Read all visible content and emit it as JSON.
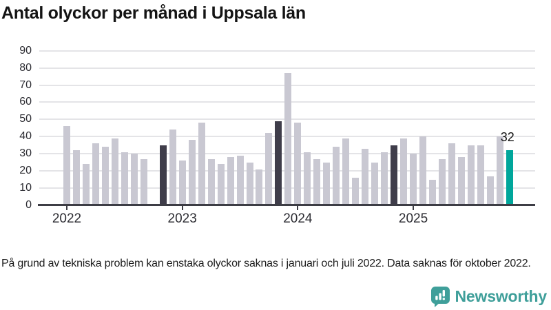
{
  "title": "Antal olyckor per månad i Uppsala län",
  "footnote": "På grund av tekniska problem kan enstaka olyckor saknas i januari och juli 2022. Data saknas för oktober 2022.",
  "branding": {
    "name": "Newsworthy",
    "icon": "newsworthy-speech-bubble-chart-icon",
    "color": "#3f9f9a"
  },
  "colors": {
    "bar_default": "#c9c8d2",
    "bar_highlight_dark": "#3f3d4a",
    "bar_latest": "#00a69b",
    "gridline": "#e4e4e7",
    "axis": "#3d3d45",
    "text": "#141414"
  },
  "chart_data": {
    "type": "bar",
    "title": "Antal olyckor per månad i Uppsala län",
    "xlabel": "",
    "ylabel": "",
    "ylim": [
      0,
      90
    ],
    "grid": "horizontal",
    "legend": "none",
    "y_ticks": [
      0,
      10,
      20,
      30,
      40,
      50,
      60,
      70,
      80,
      90
    ],
    "x_axis": {
      "labels": [
        "2022",
        "2023",
        "2024",
        "2025"
      ],
      "tick_months": [
        "2022-01",
        "2023-01",
        "2024-01",
        "2025-01"
      ]
    },
    "series": [
      {
        "name": "Antal olyckor",
        "points": [
          {
            "month": "2022-01",
            "value": 46,
            "style": "default"
          },
          {
            "month": "2022-02",
            "value": 32,
            "style": "default"
          },
          {
            "month": "2022-03",
            "value": 24,
            "style": "default"
          },
          {
            "month": "2022-04",
            "value": 36,
            "style": "default"
          },
          {
            "month": "2022-05",
            "value": 34,
            "style": "default"
          },
          {
            "month": "2022-06",
            "value": 39,
            "style": "default"
          },
          {
            "month": "2022-07",
            "value": 31,
            "style": "default"
          },
          {
            "month": "2022-08",
            "value": 30,
            "style": "default"
          },
          {
            "month": "2022-09",
            "value": 27,
            "style": "default"
          },
          {
            "month": "2022-10",
            "value": null,
            "style": "missing"
          },
          {
            "month": "2022-11",
            "value": 35,
            "style": "highlight-dark"
          },
          {
            "month": "2022-12",
            "value": 44,
            "style": "default"
          },
          {
            "month": "2023-01",
            "value": 26,
            "style": "default"
          },
          {
            "month": "2023-02",
            "value": 38,
            "style": "default"
          },
          {
            "month": "2023-03",
            "value": 48,
            "style": "default"
          },
          {
            "month": "2023-04",
            "value": 27,
            "style": "default"
          },
          {
            "month": "2023-05",
            "value": 24,
            "style": "default"
          },
          {
            "month": "2023-06",
            "value": 28,
            "style": "default"
          },
          {
            "month": "2023-07",
            "value": 29,
            "style": "default"
          },
          {
            "month": "2023-08",
            "value": 25,
            "style": "default"
          },
          {
            "month": "2023-09",
            "value": 21,
            "style": "default"
          },
          {
            "month": "2023-10",
            "value": 42,
            "style": "default"
          },
          {
            "month": "2023-11",
            "value": 49,
            "style": "highlight-dark"
          },
          {
            "month": "2023-12",
            "value": 77,
            "style": "default"
          },
          {
            "month": "2024-01",
            "value": 48,
            "style": "default"
          },
          {
            "month": "2024-02",
            "value": 31,
            "style": "default"
          },
          {
            "month": "2024-03",
            "value": 27,
            "style": "default"
          },
          {
            "month": "2024-04",
            "value": 25,
            "style": "default"
          },
          {
            "month": "2024-05",
            "value": 34,
            "style": "default"
          },
          {
            "month": "2024-06",
            "value": 39,
            "style": "default"
          },
          {
            "month": "2024-07",
            "value": 16,
            "style": "default"
          },
          {
            "month": "2024-08",
            "value": 33,
            "style": "default"
          },
          {
            "month": "2024-09",
            "value": 25,
            "style": "default"
          },
          {
            "month": "2024-10",
            "value": 31,
            "style": "default"
          },
          {
            "month": "2024-11",
            "value": 35,
            "style": "highlight-dark"
          },
          {
            "month": "2024-12",
            "value": 39,
            "style": "default"
          },
          {
            "month": "2025-01",
            "value": 30,
            "style": "default"
          },
          {
            "month": "2025-02",
            "value": 40,
            "style": "default"
          },
          {
            "month": "2025-03",
            "value": 15,
            "style": "default"
          },
          {
            "month": "2025-04",
            "value": 27,
            "style": "default"
          },
          {
            "month": "2025-05",
            "value": 36,
            "style": "default"
          },
          {
            "month": "2025-06",
            "value": 28,
            "style": "default"
          },
          {
            "month": "2025-07",
            "value": 35,
            "style": "default"
          },
          {
            "month": "2025-08",
            "value": 35,
            "style": "default"
          },
          {
            "month": "2025-09",
            "value": 17,
            "style": "default"
          },
          {
            "month": "2025-10",
            "value": 40,
            "style": "default"
          },
          {
            "month": "2025-11",
            "value": 32,
            "style": "latest"
          }
        ]
      }
    ],
    "annotations": [
      {
        "month": "2025-11",
        "label": "32"
      }
    ]
  }
}
